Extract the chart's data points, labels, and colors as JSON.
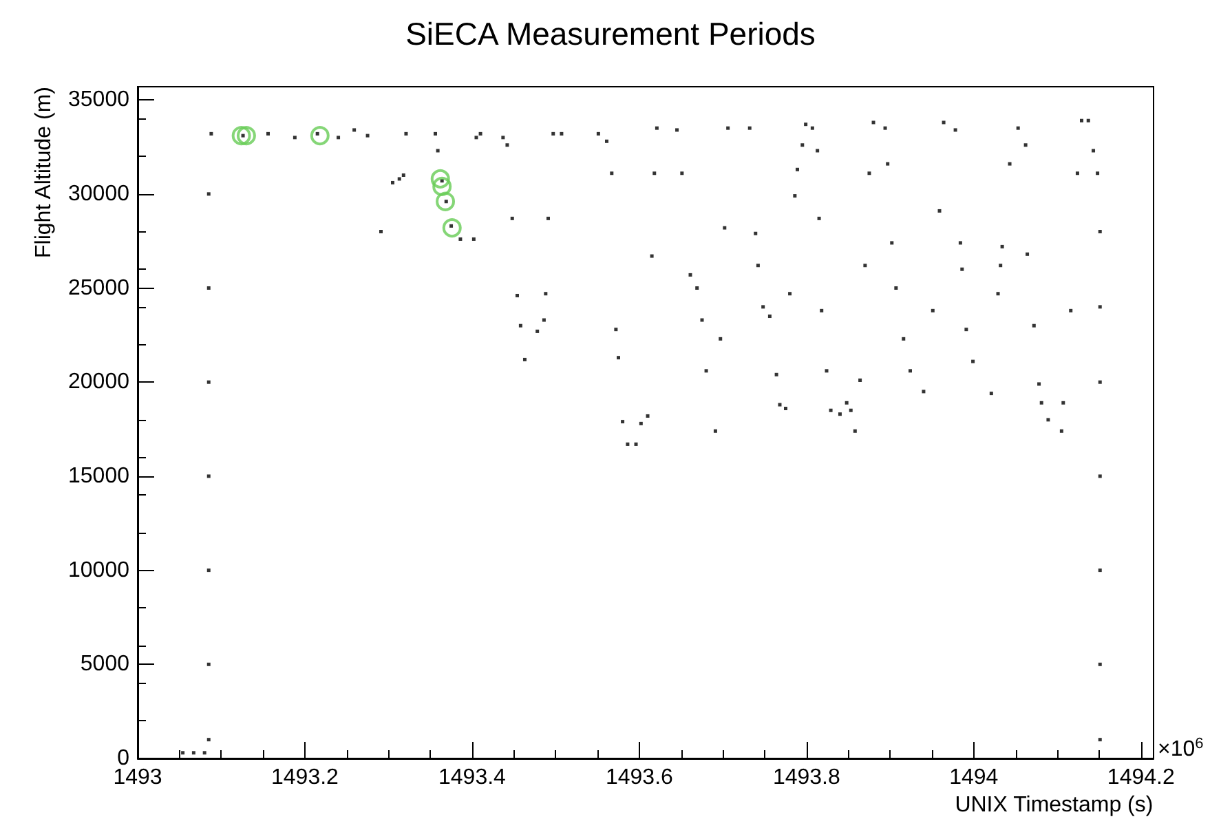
{
  "chart_data": {
    "type": "scatter",
    "title": "SiECA Measurement Periods",
    "xlabel": "UNIX Timestamp (s)",
    "ylabel": "Flight Altitude (m)",
    "annotations": [
      "×10$^{6}$"
    ],
    "xlim": [
      1493,
      1494.215
    ],
    "xticks": [
      1493,
      1493.2,
      1493.4,
      1493.6,
      1493.8,
      1494,
      1494.2
    ],
    "ylim": [
      0,
      35700
    ],
    "yticks": [
      0,
      5000,
      10000,
      15000,
      20000,
      25000,
      30000,
      35000
    ],
    "grid": false,
    "series": [
      {
        "color": "#000000",
        "marker": "square",
        "x": [
          1493.054,
          1493.067,
          1493.08,
          1493.085,
          1493.085,
          1493.085,
          1493.085,
          1493.085,
          1493.085,
          1493.085,
          1493.088,
          1493.126,
          1493.156,
          1493.188,
          1493.215,
          1493.24,
          1493.259,
          1493.275,
          1493.291,
          1493.305,
          1493.313,
          1493.318,
          1493.321,
          1493.356,
          1493.359,
          1493.364,
          1493.369,
          1493.375,
          1493.386,
          1493.402,
          1493.405,
          1493.41,
          1493.437,
          1493.442,
          1493.448,
          1493.454,
          1493.458,
          1493.463,
          1493.478,
          1493.486,
          1493.488,
          1493.491,
          1493.497,
          1493.507,
          1493.551,
          1493.561,
          1493.567,
          1493.572,
          1493.575,
          1493.58,
          1493.586,
          1493.596,
          1493.602,
          1493.61,
          1493.615,
          1493.618,
          1493.621,
          1493.645,
          1493.651,
          1493.661,
          1493.669,
          1493.675,
          1493.68,
          1493.691,
          1493.697,
          1493.702,
          1493.706,
          1493.732,
          1493.739,
          1493.742,
          1493.748,
          1493.756,
          1493.764,
          1493.768,
          1493.775,
          1493.78,
          1493.786,
          1493.789,
          1493.795,
          1493.799,
          1493.807,
          1493.813,
          1493.815,
          1493.818,
          1493.824,
          1493.829,
          1493.84,
          1493.848,
          1493.853,
          1493.858,
          1493.864,
          1493.87,
          1493.875,
          1493.88,
          1493.894,
          1493.897,
          1493.902,
          1493.907,
          1493.916,
          1493.924,
          1493.94,
          1493.951,
          1493.959,
          1493.964,
          1493.978,
          1493.984,
          1493.986,
          1493.991,
          1493.999,
          1494.021,
          1494.029,
          1494.032,
          1494.034,
          1494.043,
          1494.053,
          1494.062,
          1494.064,
          1494.072,
          1494.078,
          1494.081,
          1494.089,
          1494.105,
          1494.107,
          1494.116,
          1494.124,
          1494.129,
          1494.137,
          1494.143,
          1494.148,
          1494.151,
          1494.151,
          1494.151,
          1494.151,
          1494.151,
          1494.151,
          1494.151
        ],
        "values": [
          300,
          300,
          300,
          1000,
          5000,
          10000,
          15000,
          20000,
          25000,
          30000,
          33200,
          33100,
          33200,
          33000,
          33200,
          33000,
          33400,
          33100,
          28000,
          30600,
          30800,
          31000,
          33200,
          33200,
          32300,
          30700,
          29600,
          28300,
          27600,
          27600,
          33000,
          33200,
          33000,
          32600,
          28700,
          24600,
          23000,
          21200,
          22700,
          23300,
          24700,
          28700,
          33200,
          33200,
          33200,
          32800,
          31100,
          22800,
          21300,
          17900,
          16700,
          16700,
          17800,
          18200,
          26700,
          31100,
          33500,
          33400,
          31100,
          25700,
          25000,
          23300,
          20600,
          17400,
          22300,
          28200,
          33500,
          33500,
          27900,
          26200,
          24000,
          23500,
          20400,
          18800,
          18600,
          24700,
          29900,
          31300,
          32600,
          33700,
          33500,
          32300,
          28700,
          23800,
          20600,
          18500,
          18300,
          18900,
          18500,
          17400,
          20100,
          26200,
          31100,
          33800,
          33500,
          31600,
          27400,
          25000,
          22300,
          20600,
          19500,
          23800,
          29100,
          33800,
          33400,
          27400,
          26000,
          22800,
          21100,
          19400,
          24700,
          26200,
          27200,
          31600,
          33500,
          32600,
          26800,
          23000,
          19900,
          18900,
          18000,
          17400,
          18900,
          23800,
          31100,
          33900,
          33900,
          32300,
          31100,
          28000,
          24000,
          20000,
          15000,
          10000,
          5000,
          1000
        ]
      },
      {
        "color": "#66cc55",
        "marker": "circle",
        "x": [
          1493.124,
          1493.13,
          1493.218,
          1493.362,
          1493.364,
          1493.368,
          1493.376
        ],
        "values": [
          33100,
          33100,
          33100,
          30800,
          30400,
          29600,
          28200
        ]
      }
    ]
  }
}
